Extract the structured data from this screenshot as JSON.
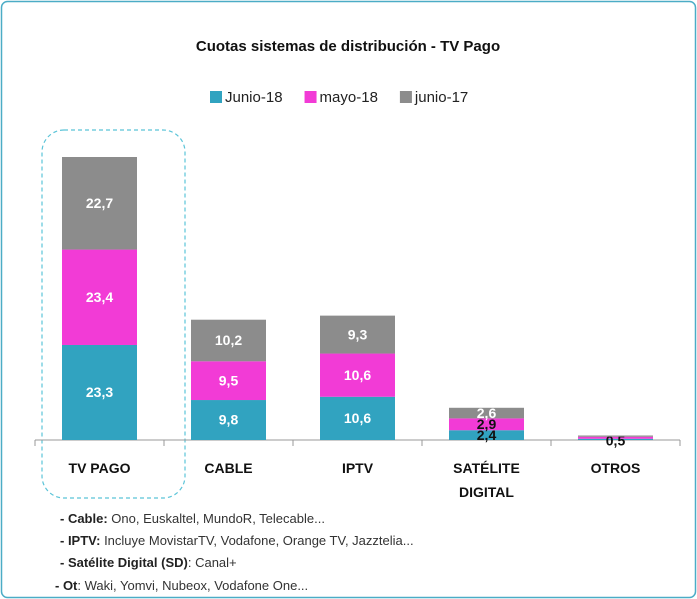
{
  "chart_data": {
    "type": "bar",
    "stacked": true,
    "title": "Cuotas sistemas de distribución - TV Pago",
    "categories": [
      "TV PAGO",
      "CABLE",
      "IPTV",
      "SATÉLITE DIGITAL",
      "OTROS"
    ],
    "series": [
      {
        "name": "Junio-18",
        "color": "#31a3c0",
        "values": [
          23.3,
          9.8,
          10.6,
          2.4,
          0.3
        ],
        "value_labels": [
          "23,3",
          "9,8",
          "10,6",
          "2,4",
          null
        ]
      },
      {
        "name": "mayo-18",
        "color": "#f23bd6",
        "values": [
          23.4,
          9.5,
          10.6,
          2.9,
          0.5
        ],
        "value_labels": [
          "23,4",
          "9,5",
          "10,6",
          "2,9",
          "0,5"
        ]
      },
      {
        "name": "junio-17",
        "color": "#8c8c8c",
        "values": [
          22.7,
          10.2,
          9.3,
          2.6,
          0.3
        ],
        "value_labels": [
          "22,7",
          "10,2",
          "9,3",
          "2,6",
          null
        ]
      }
    ],
    "ylim": [
      0,
      70
    ],
    "legend": "top"
  },
  "notes": [
    {
      "label": "- Cable:",
      "text": " Ono, Euskaltel, MundoR, Telecable..."
    },
    {
      "label": "- IPTV:",
      "text": " Incluye MovistarTV, Vodafone, Orange TV, Jazztelia..."
    },
    {
      "label": "- Satélite Digital (SD)",
      "text": ": Canal+"
    },
    {
      "label": "- Ot",
      "text": ": Waki, Yomvi, Nubeox, Vodafone One..."
    }
  ]
}
